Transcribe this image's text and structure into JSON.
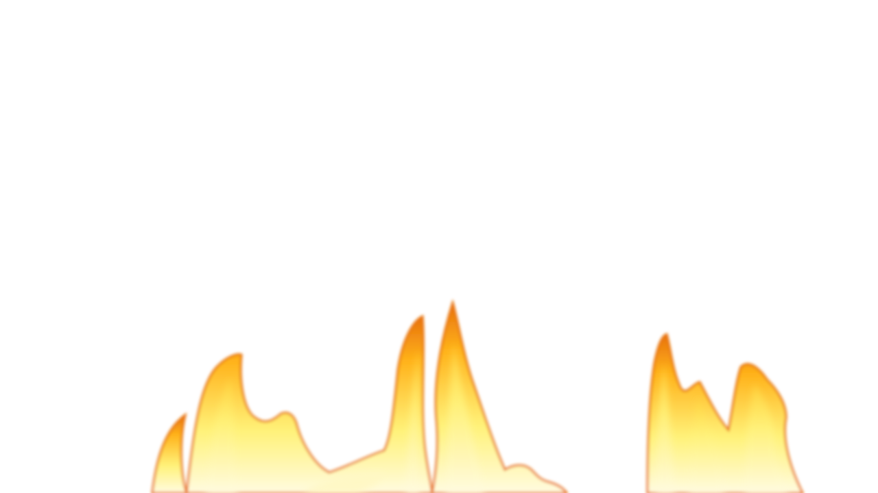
{
  "scene": {
    "background": "#ffffff",
    "subject": "flames",
    "colors": {
      "edge": "#e8720c",
      "mid": "#ffb21a",
      "core": "#fff27a",
      "hot": "#fffbe0"
    }
  }
}
